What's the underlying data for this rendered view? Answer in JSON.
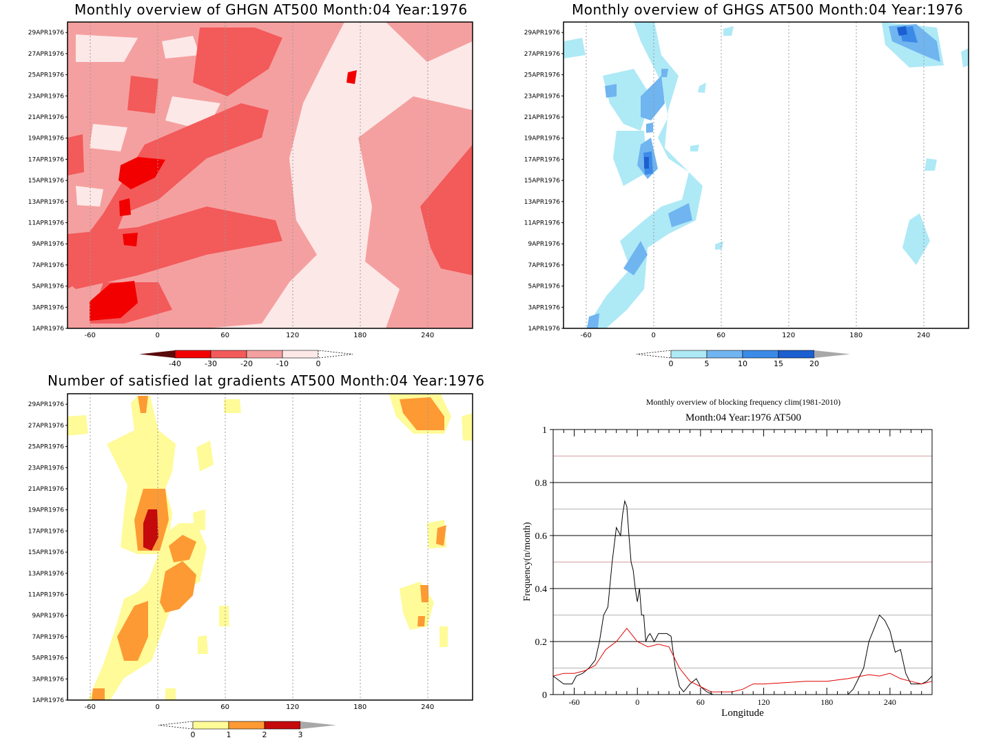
{
  "panels": {
    "ghgn": {
      "title": "Monthly overview of GHGN AT500 Month:04 Year:1976",
      "colorbar": {
        "labels": [
          "-40",
          "-30",
          "-20",
          "-10",
          "0"
        ],
        "colors": [
          "#5a0a0a",
          "#f20000",
          "#f35a5a",
          "#f5a0a0",
          "#fde8e8"
        ]
      }
    },
    "ghgs": {
      "title": "Monthly overview of GHGS AT500 Month:04 Year:1976",
      "colorbar": {
        "labels": [
          "0",
          "5",
          "10",
          "15",
          "20"
        ],
        "colors": [
          "#aee9f6",
          "#70b4f0",
          "#3c8ae8",
          "#1c5fd0",
          "#a8a8a8"
        ]
      }
    },
    "lat": {
      "title": "Number of satisfied lat gradients AT500 Month:04 Year:1976",
      "colorbar": {
        "labels": [
          "0",
          "1",
          "2",
          "3"
        ],
        "colors": [
          "#fefb98",
          "#fd9a34",
          "#c40a0a",
          "#a8a8a8"
        ]
      }
    },
    "freq": {
      "title": "Monthly overview of blocking frequency clim(1981-2010)",
      "subtitle": "Month:04 Year:1976  AT500"
    }
  },
  "map_axes": {
    "x_ticks": [
      -60,
      0,
      60,
      120,
      180,
      240
    ],
    "x_range": [
      -80,
      280
    ],
    "y_labels": [
      "1APR1976",
      "3APR1976",
      "5APR1976",
      "7APR1976",
      "9APR1976",
      "11APR1976",
      "13APR1976",
      "15APR1976",
      "17APR1976",
      "19APR1976",
      "21APR1976",
      "23APR1976",
      "25APR1976",
      "27APR1976",
      "29APR1976"
    ]
  },
  "chart_data": [
    {
      "type": "heatmap",
      "title": "Monthly overview of GHGN AT500 Month:04 Year:1976",
      "xlim": [
        -80,
        280
      ],
      "ylim": [
        "1APR1976",
        "30APR1976"
      ],
      "levels": [
        -40,
        -30,
        -20,
        -10,
        0
      ],
      "grid": true,
      "regions": [
        {
          "level": -30,
          "x": -42,
          "y": 17,
          "rx": 12,
          "ry": 1.2
        },
        {
          "level": -30,
          "x": -40,
          "y": 2.2,
          "rx": 16,
          "ry": 1.2
        },
        {
          "level": -30,
          "x": -30,
          "y": 5,
          "rx": 4,
          "ry": 1
        },
        {
          "level": -30,
          "x": -28,
          "y": 12.5,
          "rx": 4,
          "ry": 1
        },
        {
          "level": -20,
          "x": -28,
          "y": 8,
          "rx": 40,
          "ry": 4
        },
        {
          "level": -20,
          "x": 40,
          "y": 26,
          "rx": 40,
          "ry": 3
        },
        {
          "level": -20,
          "x": -30,
          "y": 17,
          "rx": 30,
          "ry": 2.5
        },
        {
          "level": -20,
          "x": 250,
          "y": 10,
          "rx": 25,
          "ry": 4
        }
      ]
    },
    {
      "type": "heatmap",
      "title": "Monthly overview of GHGS AT500 Month:04 Year:1976",
      "xlim": [
        -80,
        280
      ],
      "ylim": [
        "1APR1976",
        "30APR1976"
      ],
      "levels": [
        0,
        5,
        10,
        15,
        20
      ],
      "grid": true,
      "regions": [
        {
          "level": 5,
          "x": -25,
          "y": 8,
          "rx": 12,
          "ry": 3
        },
        {
          "level": 10,
          "x": -10,
          "y": 16.5,
          "rx": 3,
          "ry": 1.5
        },
        {
          "level": 15,
          "x": 225,
          "y": 29,
          "rx": 8,
          "ry": 1
        }
      ]
    },
    {
      "type": "heatmap",
      "title": "Number of satisfied lat gradients AT500 Month:04 Year:1976",
      "xlim": [
        -80,
        280
      ],
      "ylim": [
        "1APR1976",
        "30APR1976"
      ],
      "levels": [
        0,
        1,
        2,
        3
      ],
      "grid": true,
      "regions": [
        {
          "level": 3,
          "x": -7,
          "y": 17.5,
          "rx": 3,
          "ry": 1.5
        },
        {
          "level": 2,
          "x": -20,
          "y": 7,
          "rx": 10,
          "ry": 2
        },
        {
          "level": 2,
          "x": 20,
          "y": 11,
          "rx": 10,
          "ry": 2
        },
        {
          "level": 2,
          "x": 235,
          "y": 29,
          "rx": 15,
          "ry": 1.2
        }
      ]
    },
    {
      "type": "line",
      "title": "Monthly overview of blocking frequency clim(1981-2010)",
      "subtitle": "Month:04 Year:1976  AT500",
      "xlabel": "Longitude",
      "ylabel": "Frequency(n/month)",
      "xlim": [
        -80,
        280
      ],
      "ylim": [
        0,
        1
      ],
      "x_ticks": [
        -60,
        0,
        60,
        120,
        180,
        240
      ],
      "y_ticks": [
        0,
        0.2,
        0.4,
        0.6,
        0.8,
        1
      ],
      "grid": true,
      "series": [
        {
          "color": "#000000",
          "x": [
            -80,
            -70,
            -62,
            -58,
            -52,
            -46,
            -40,
            -36,
            -32,
            -28,
            -24,
            -20,
            -16,
            -14,
            -12,
            -10,
            -8,
            -6,
            -4,
            -2,
            0,
            2,
            4,
            6,
            8,
            10,
            12,
            16,
            20,
            24,
            28,
            32,
            36,
            40,
            44,
            50,
            56,
            60,
            66,
            72,
            80,
            90,
            100,
            110,
            120,
            130,
            140,
            150,
            160,
            170,
            180,
            190,
            200,
            205,
            210,
            215,
            220,
            225,
            230,
            235,
            240,
            245,
            250,
            255,
            260,
            265,
            270,
            275,
            280
          ],
          "y": [
            0.07,
            0.04,
            0.04,
            0.07,
            0.08,
            0.1,
            0.13,
            0.2,
            0.3,
            0.33,
            0.5,
            0.63,
            0.6,
            0.68,
            0.73,
            0.71,
            0.6,
            0.5,
            0.47,
            0.4,
            0.35,
            0.4,
            0.3,
            0.3,
            0.2,
            0.22,
            0.23,
            0.2,
            0.23,
            0.23,
            0.23,
            0.22,
            0.1,
            0.03,
            0.01,
            0.04,
            0.06,
            0.03,
            0.01,
            0.0,
            0.0,
            0.0,
            0.0,
            0.0,
            0.0,
            0.0,
            0.0,
            0.0,
            0.0,
            0.0,
            0.0,
            0.0,
            0.0,
            0.02,
            0.06,
            0.1,
            0.2,
            0.25,
            0.3,
            0.28,
            0.24,
            0.16,
            0.17,
            0.08,
            0.04,
            0.04,
            0.04,
            0.05,
            0.07
          ]
        },
        {
          "color": "#e00000",
          "x": [
            -80,
            -70,
            -60,
            -50,
            -40,
            -30,
            -20,
            -10,
            0,
            10,
            20,
            30,
            40,
            50,
            60,
            70,
            80,
            90,
            100,
            110,
            120,
            140,
            160,
            180,
            200,
            220,
            230,
            240,
            250,
            260,
            270,
            280
          ],
          "y": [
            0.07,
            0.08,
            0.08,
            0.09,
            0.11,
            0.17,
            0.2,
            0.25,
            0.2,
            0.18,
            0.19,
            0.18,
            0.1,
            0.05,
            0.03,
            0.01,
            0.01,
            0.01,
            0.02,
            0.04,
            0.04,
            0.045,
            0.05,
            0.05,
            0.06,
            0.075,
            0.07,
            0.08,
            0.06,
            0.05,
            0.04,
            0.05
          ]
        }
      ]
    }
  ]
}
